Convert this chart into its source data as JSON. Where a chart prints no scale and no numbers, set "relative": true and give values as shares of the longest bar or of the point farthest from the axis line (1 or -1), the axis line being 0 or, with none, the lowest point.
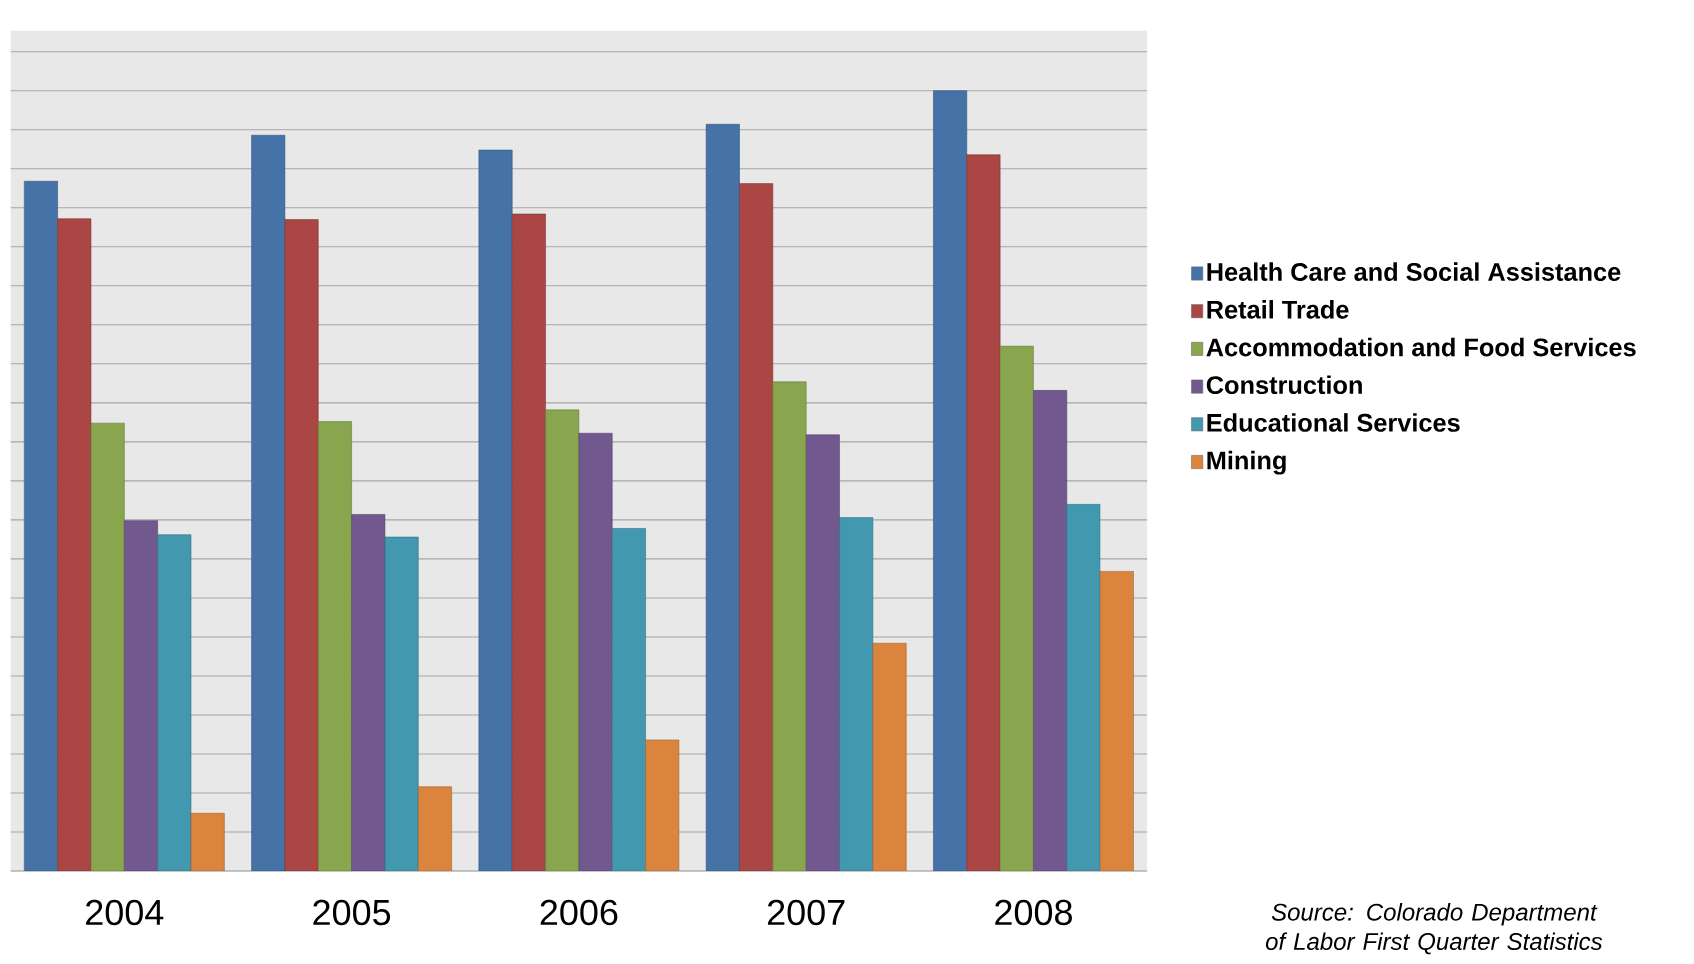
{
  "chart_data": {
    "type": "bar",
    "relative": true,
    "grid": "y",
    "legend": "right",
    "categories": [
      "2004",
      "2005",
      "2006",
      "2007",
      "2008"
    ],
    "series": [
      {
        "name": "Health Care and Social Assistance",
        "color": "#4572a7",
        "values": [
          0.884,
          0.943,
          0.924,
          0.957,
          1
        ]
      },
      {
        "name": "Retail Trade",
        "color": "#aa4643",
        "values": [
          0.836,
          0.835,
          0.842,
          0.881,
          0.918
        ]
      },
      {
        "name": "Accommodation and Food Services",
        "color": "#89a54e",
        "values": [
          0.574,
          0.576,
          0.591,
          0.627,
          0.673
        ]
      },
      {
        "name": "Construction",
        "color": "#71588f",
        "values": [
          0.449,
          0.457,
          0.561,
          0.559,
          0.616
        ]
      },
      {
        "name": "Educational Services",
        "color": "#4198af",
        "values": [
          0.431,
          0.428,
          0.439,
          0.453,
          0.47
        ]
      },
      {
        "name": "Mining",
        "color": "#db843d",
        "values": [
          0.074,
          0.108,
          0.168,
          0.292,
          0.384
        ]
      }
    ],
    "annotations": [
      "*Source: Colorado Department of Labor First Quarter Statistics*"
    ]
  }
}
